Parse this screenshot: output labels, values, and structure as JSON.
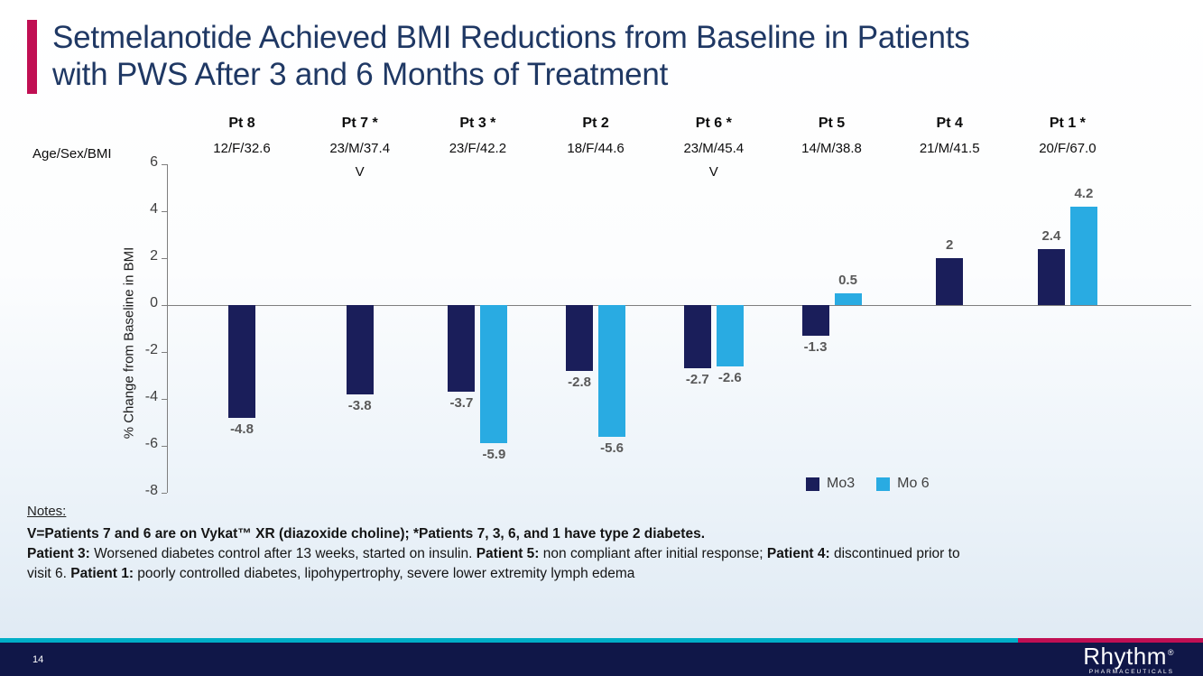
{
  "slide": {
    "title_line1": "Setmelanotide Achieved BMI Reductions from Baseline in Patients",
    "title_line2": "with PWS After 3 and 6 Months of Treatment"
  },
  "chart_data": {
    "type": "bar",
    "title": "Setmelanotide Achieved BMI Reductions from Baseline in Patients with PWS After 3 and 6 Months of Treatment",
    "ylabel": "% Change from Baseline in BMI",
    "row_header": "Age/Sex/BMI",
    "ylim": [
      -8,
      6
    ],
    "yticks": [
      6,
      4,
      2,
      0,
      -2,
      -4,
      -6,
      -8
    ],
    "grid": false,
    "legend_position": "bottom-right",
    "categories": [
      "Pt 8",
      "Pt 7 *",
      "Pt 3 *",
      "Pt 2",
      "Pt 6 *",
      "Pt 5",
      "Pt 4",
      "Pt 1 *"
    ],
    "age_sex_bmi": [
      "12/F/32.6",
      "23/M/37.4",
      "23/F/42.2",
      "18/F/44.6",
      "23/M/45.4",
      "14/M/38.8",
      "21/M/41.5",
      "20/F/67.0"
    ],
    "v_markers": [
      "",
      "V",
      "",
      "",
      "V",
      "",
      "",
      ""
    ],
    "series": [
      {
        "name": "Mo3",
        "color": "#1A1E5A",
        "values": [
          -4.8,
          -3.8,
          -3.7,
          -2.8,
          -2.7,
          -1.3,
          2,
          2.4
        ],
        "labels": [
          "-4.8",
          "-3.8",
          "-3.7",
          "-2.8",
          "-2.7",
          "-1.3",
          "2",
          "2.4"
        ]
      },
      {
        "name": "Mo 6",
        "color": "#29ABE2",
        "values": [
          null,
          null,
          -5.9,
          -5.6,
          -2.6,
          0.5,
          null,
          4.2
        ],
        "labels": [
          "",
          "",
          "-5.9",
          "-5.6",
          "-2.6",
          "0.5",
          "",
          "4.2"
        ]
      }
    ]
  },
  "notes": {
    "heading": "Notes:",
    "line1": "V=Patients 7 and 6 are on Vykat™ XR (diazoxide choline); *Patients 7, 3, 6, and 1 have type 2 diabetes.",
    "line2_segments": [
      {
        "text": "Patient 3:",
        "bold": true
      },
      {
        "text": " Worsened diabetes control after 13 weeks, started on insulin. ",
        "bold": false
      },
      {
        "text": "Patient 5:",
        "bold": true
      },
      {
        "text": " non compliant after initial response; ",
        "bold": false
      },
      {
        "text": "Patient 4:",
        "bold": true
      },
      {
        "text": " discontinued prior to visit 6. ",
        "bold": false
      },
      {
        "text": "Patient 1:",
        "bold": true
      },
      {
        "text": " poorly controlled diabetes, lipohypertrophy, severe lower extremity lymph edema",
        "bold": false
      }
    ]
  },
  "footer": {
    "page_number": "14",
    "logo_text": "Rhythm",
    "logo_registered": "®",
    "logo_subtext": "PHARMACEUTICALS"
  },
  "colors": {
    "accent": "#C00F53",
    "title": "#1F3864",
    "bar_mo3": "#1A1E5A",
    "bar_mo6": "#29ABE2",
    "footer_bg": "#101748",
    "stripe_cyan": "#00AEC7",
    "stripe_magenta": "#C00F53",
    "value_label": "#595959",
    "tick_label": "#404040"
  }
}
